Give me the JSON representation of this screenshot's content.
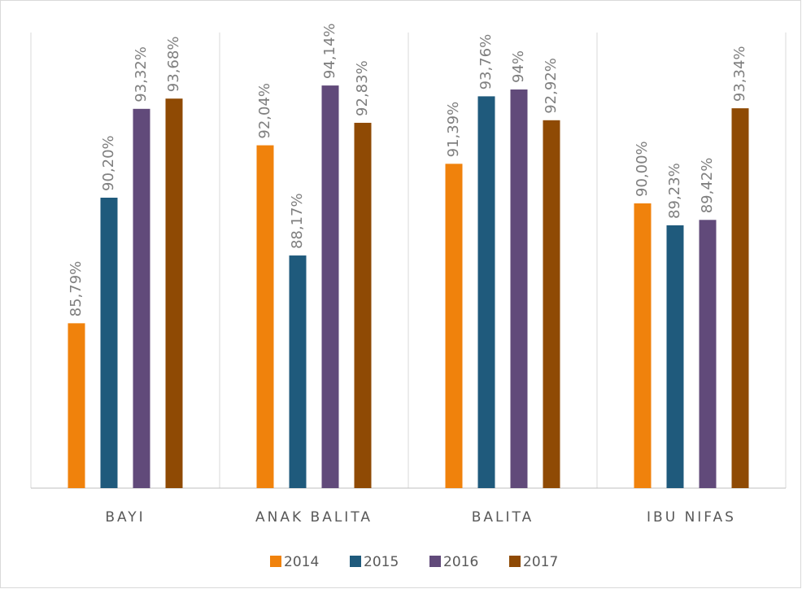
{
  "chart_data": {
    "type": "bar",
    "categories": [
      "BAYI",
      "ANAK BALITA",
      "BALITA",
      "IBU NIFAS"
    ],
    "series": [
      {
        "name": "2014",
        "color": "#f0820c",
        "values": [
          85.79,
          92.04,
          91.39,
          90.0
        ],
        "value_labels": [
          "85,79%",
          "92,04%",
          "91,39%",
          "90,00%"
        ]
      },
      {
        "name": "2015",
        "color": "#1f5a7c",
        "values": [
          90.2,
          88.17,
          93.76,
          89.23
        ],
        "value_labels": [
          "90,20%",
          "88,17%",
          "93,76%",
          "89,23%"
        ]
      },
      {
        "name": "2016",
        "color": "#614a7a",
        "values": [
          93.32,
          94.14,
          94,
          89.42
        ],
        "value_labels": [
          "93,32%",
          "94,14%",
          "94%",
          "89,42%"
        ]
      },
      {
        "name": "2017",
        "color": "#8f4a04",
        "values": [
          93.68,
          92.83,
          92.92,
          93.34
        ],
        "value_labels": [
          "93,68%",
          "92,83%",
          "92,92%",
          "93,34%"
        ]
      }
    ],
    "ylim": [
      80,
      96
    ],
    "legend": "bottom"
  }
}
